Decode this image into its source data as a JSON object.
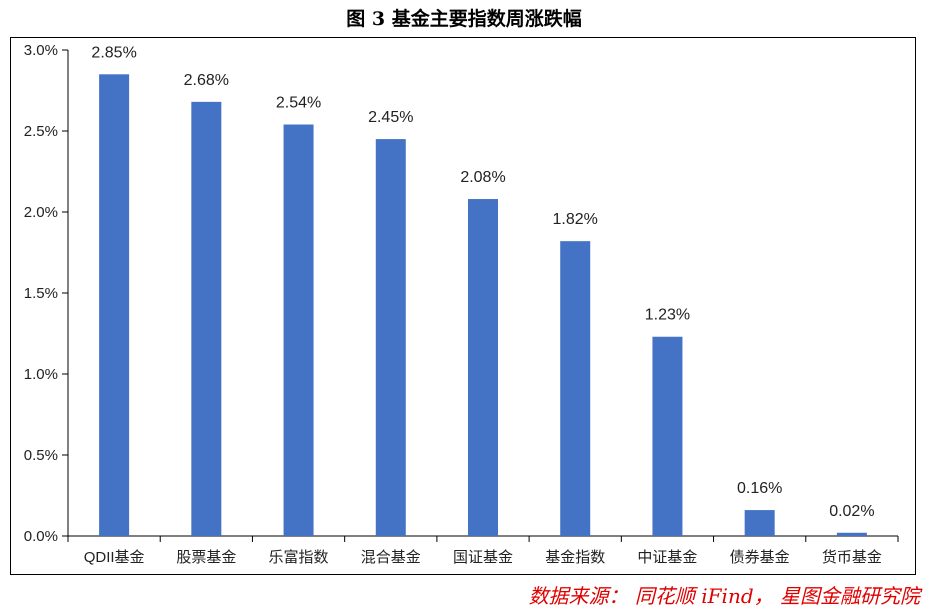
{
  "chart_data": {
    "type": "bar",
    "title": "图 3 基金主要指数周涨跌幅",
    "categories": [
      "QDII基金",
      "股票基金",
      "乐富指数",
      "混合基金",
      "国证基金",
      "基金指数",
      "中证基金",
      "债券基金",
      "货币基金"
    ],
    "values": [
      2.85,
      2.68,
      2.54,
      2.45,
      2.08,
      1.82,
      1.23,
      0.16,
      0.02
    ],
    "data_labels": [
      "2.85%",
      "2.68%",
      "2.54%",
      "2.45%",
      "2.08%",
      "1.82%",
      "1.23%",
      "0.16%",
      "0.02%"
    ],
    "ylim": [
      0,
      3.0
    ],
    "yticks": [
      0,
      0.5,
      1.0,
      1.5,
      2.0,
      2.5,
      3.0
    ],
    "ytick_labels": [
      "0.0%",
      "0.5%",
      "1.0%",
      "1.5%",
      "2.0%",
      "2.5%",
      "3.0%"
    ],
    "bar_color": "#4472c4",
    "grid": false,
    "legend": "none"
  },
  "source": "数据来源： 同花顺 iFind， 星图金融研究院"
}
